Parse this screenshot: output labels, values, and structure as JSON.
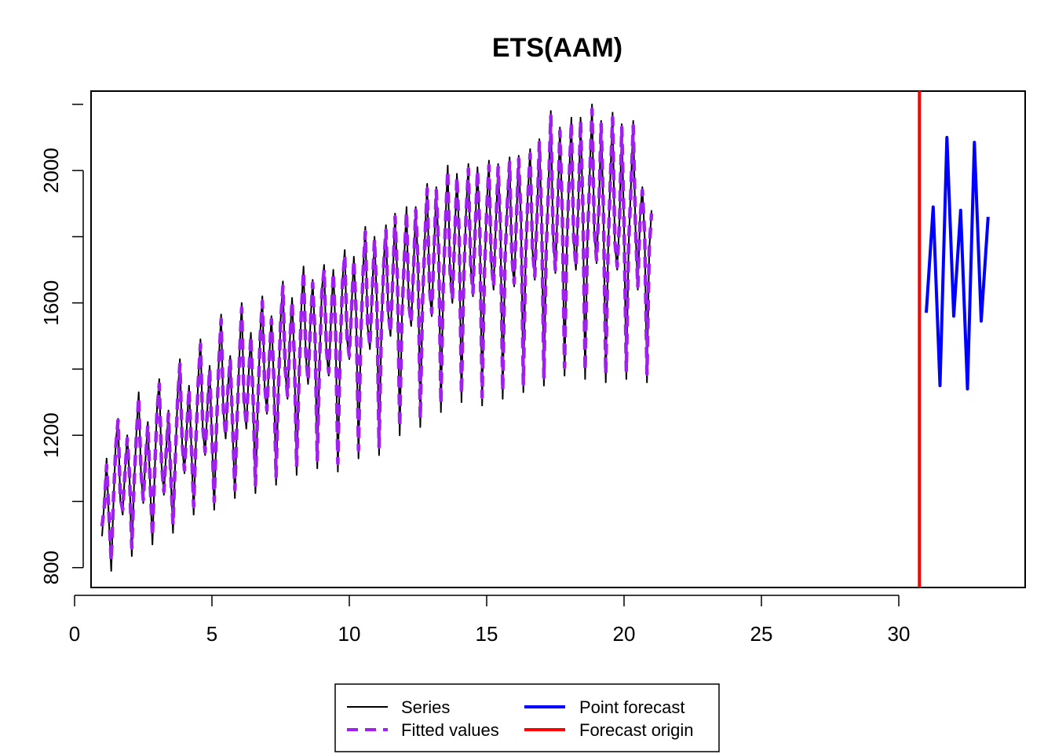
{
  "chart_data": {
    "type": "line",
    "title": "ETS(AAM)",
    "xlabel": "",
    "ylabel": "",
    "xlim": [
      0.6,
      34.6
    ],
    "ylim": [
      740,
      2240
    ],
    "x_ticks": [
      0,
      5,
      10,
      15,
      20,
      25,
      30
    ],
    "y_ticks": [
      800,
      1200,
      1600,
      2000
    ],
    "y_tick_labels": [
      "800",
      "1200",
      "1600",
      "2000"
    ],
    "grid": false,
    "legend_position": "bottom",
    "frequency": 12,
    "start": 1,
    "series": [
      {
        "name": "Series",
        "color": "#000000",
        "style": "solid",
        "values": [
          895,
          1000,
          1130,
          940,
          790,
          1000,
          1180,
          1250,
          1000,
          960,
          1090,
          1200,
          1075,
          835,
          1050,
          1210,
          1330,
          1085,
          995,
          1130,
          1240,
          1045,
          870,
          1090,
          1280,
          1370,
          1110,
          1020,
          1155,
          1275,
          1075,
          905,
          1125,
          1320,
          1430,
          1170,
          1085,
          1220,
          1350,
          1165,
          960,
          1180,
          1370,
          1490,
          1220,
          1140,
          1280,
          1410,
          1190,
          975,
          1220,
          1430,
          1565,
          1270,
          1190,
          1345,
          1440,
          1225,
          1010,
          1250,
          1440,
          1600,
          1305,
          1220,
          1380,
          1510,
          1300,
          1025,
          1275,
          1500,
          1620,
          1350,
          1265,
          1430,
          1560,
          1370,
          1050,
          1330,
          1550,
          1665,
          1395,
          1310,
          1485,
          1615,
          1430,
          1080,
          1360,
          1580,
          1710,
          1440,
          1355,
          1535,
          1670,
          1500,
          1100,
          1420,
          1640,
          1715,
          1455,
          1380,
          1550,
          1700,
          1515,
          1090,
          1450,
          1670,
          1760,
          1490,
          1430,
          1590,
          1740,
          1560,
          1130,
          1490,
          1700,
          1830,
          1530,
          1460,
          1640,
          1800,
          1610,
          1140,
          1510,
          1725,
          1835,
          1565,
          1500,
          1680,
          1870,
          1670,
          1200,
          1560,
          1740,
          1890,
          1590,
          1530,
          1700,
          1890,
          1720,
          1225,
          1600,
          1800,
          1960,
          1640,
          1560,
          1760,
          1950,
          1760,
          1270,
          1640,
          1850,
          2015,
          1690,
          1600,
          1800,
          1990,
          1800,
          1300,
          1670,
          1880,
          2020,
          1710,
          1620,
          1830,
          2010,
          1810,
          1290,
          1680,
          1890,
          2030,
          1720,
          1640,
          1840,
          2020,
          1830,
          1310,
          1720,
          1910,
          2040,
          1735,
          1650,
          1860,
          2045,
          1845,
          1330,
          1730,
          1930,
          2065,
          1760,
          1670,
          1870,
          2095,
          1855,
          1350,
          1750,
          1960,
          2180,
          1800,
          1690,
          1890,
          2130,
          1870,
          1380,
          1770,
          1980,
          2160,
          1790,
          1700,
          1890,
          2160,
          1890,
          1370,
          1780,
          1990,
          2200,
          1815,
          1720,
          1890,
          2150,
          1880,
          1360,
          1750,
          1980,
          2175,
          1780,
          1700,
          1850,
          2140,
          1830,
          1370,
          1770,
          1950,
          2150,
          1820,
          1640,
          1860,
          1950,
          1800,
          1360,
          1760,
          1880
        ]
      },
      {
        "name": "Fitted values",
        "color": "#a020f0",
        "style": "dashed",
        "values": [
          925,
          985,
          1110,
          960,
          820,
          1010,
          1165,
          1245,
          1010,
          975,
          1085,
          1190,
          1080,
          860,
          1055,
          1200,
          1315,
          1090,
          1005,
          1125,
          1230,
          1055,
          895,
          1095,
          1270,
          1355,
          1115,
          1030,
          1150,
          1265,
          1080,
          930,
          1130,
          1310,
          1415,
          1175,
          1095,
          1215,
          1340,
          1170,
          985,
          1185,
          1360,
          1475,
          1225,
          1150,
          1275,
          1400,
          1195,
          1000,
          1225,
          1420,
          1550,
          1275,
          1200,
          1340,
          1430,
          1230,
          1035,
          1255,
          1430,
          1585,
          1310,
          1230,
          1375,
          1500,
          1305,
          1050,
          1280,
          1490,
          1605,
          1355,
          1275,
          1425,
          1550,
          1375,
          1075,
          1335,
          1540,
          1650,
          1400,
          1320,
          1480,
          1605,
          1435,
          1105,
          1365,
          1570,
          1695,
          1445,
          1365,
          1530,
          1660,
          1505,
          1125,
          1425,
          1630,
          1700,
          1460,
          1390,
          1545,
          1690,
          1520,
          1115,
          1455,
          1660,
          1745,
          1495,
          1440,
          1585,
          1730,
          1565,
          1155,
          1495,
          1690,
          1815,
          1535,
          1470,
          1635,
          1790,
          1615,
          1165,
          1515,
          1715,
          1820,
          1570,
          1510,
          1675,
          1860,
          1675,
          1225,
          1565,
          1730,
          1875,
          1595,
          1540,
          1695,
          1880,
          1725,
          1250,
          1605,
          1790,
          1945,
          1645,
          1570,
          1755,
          1940,
          1765,
          1295,
          1645,
          1840,
          2000,
          1695,
          1610,
          1795,
          1980,
          1805,
          1325,
          1675,
          1870,
          2005,
          1715,
          1630,
          1825,
          2000,
          1815,
          1315,
          1685,
          1880,
          2015,
          1725,
          1650,
          1835,
          2010,
          1835,
          1335,
          1725,
          1900,
          2025,
          1740,
          1660,
          1855,
          2035,
          1850,
          1355,
          1735,
          1920,
          2050,
          1765,
          1680,
          1865,
          2085,
          1860,
          1375,
          1755,
          1950,
          2165,
          1805,
          1700,
          1885,
          2120,
          1875,
          1405,
          1775,
          1970,
          2145,
          1795,
          1710,
          1885,
          2150,
          1895,
          1395,
          1785,
          1980,
          2185,
          1820,
          1730,
          1885,
          2140,
          1885,
          1385,
          1755,
          1970,
          2160,
          1785,
          1710,
          1845,
          2130,
          1835,
          1395,
          1775,
          1940,
          2135,
          1825,
          1650,
          1855,
          1940,
          1805,
          1385,
          1765,
          1870
        ]
      },
      {
        "name": "Point forecast",
        "color": "#0000ff",
        "style": "solid",
        "x": [
          31.0,
          31.25,
          31.5,
          31.75,
          32.0,
          32.25,
          32.5,
          32.75,
          33.0,
          33.25
        ],
        "values": [
          1570,
          1890,
          1350,
          2100,
          1560,
          1880,
          1340,
          2085,
          1545,
          1860
        ]
      }
    ],
    "forecast_origin": {
      "name": "Forecast origin",
      "x": 30.75,
      "color": "#ff0000"
    }
  }
}
